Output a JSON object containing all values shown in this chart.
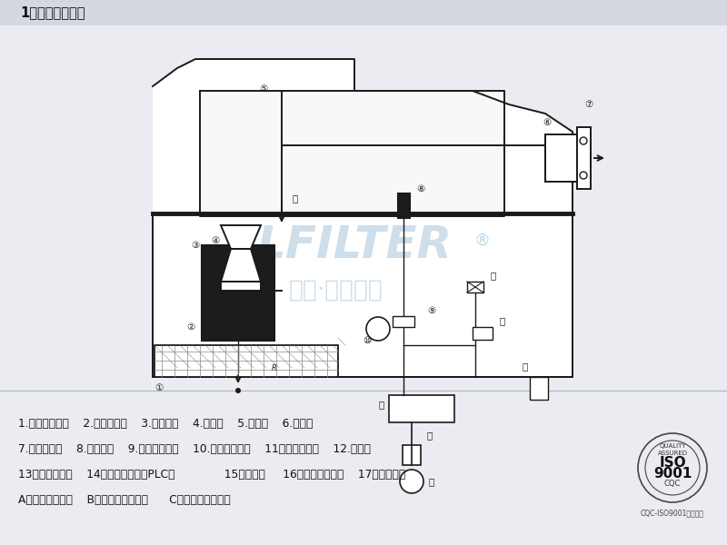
{
  "bg_color": "#eaecf2",
  "title": "1、结构原理图：",
  "watermark1": "LFILTER",
  "watermark2": "中国·利萢达特",
  "reg_symbol": "®",
  "label_line1": "1.一级粗过滤筱    2.高效过滤筒    3.密封帮圈    4.文氏管    5.净气管    6.集气口",
  "label_line2": "7.净气出口管    8.负压探头    9.负压差控制仪    10.负压差报警器    11、反吹气嘴咀    12.电磁阀",
  "label_line3": "13、油水分离器    14、编程控制器（PLC）              15、控制仪     16、压缩空气入口    17、电源插座",
  "label_line4": "A、红线为电路线    B、绻线为过滤过程      C、黄线为自洁过程",
  "iso_cert": "CQC-ISO9001质量认证"
}
